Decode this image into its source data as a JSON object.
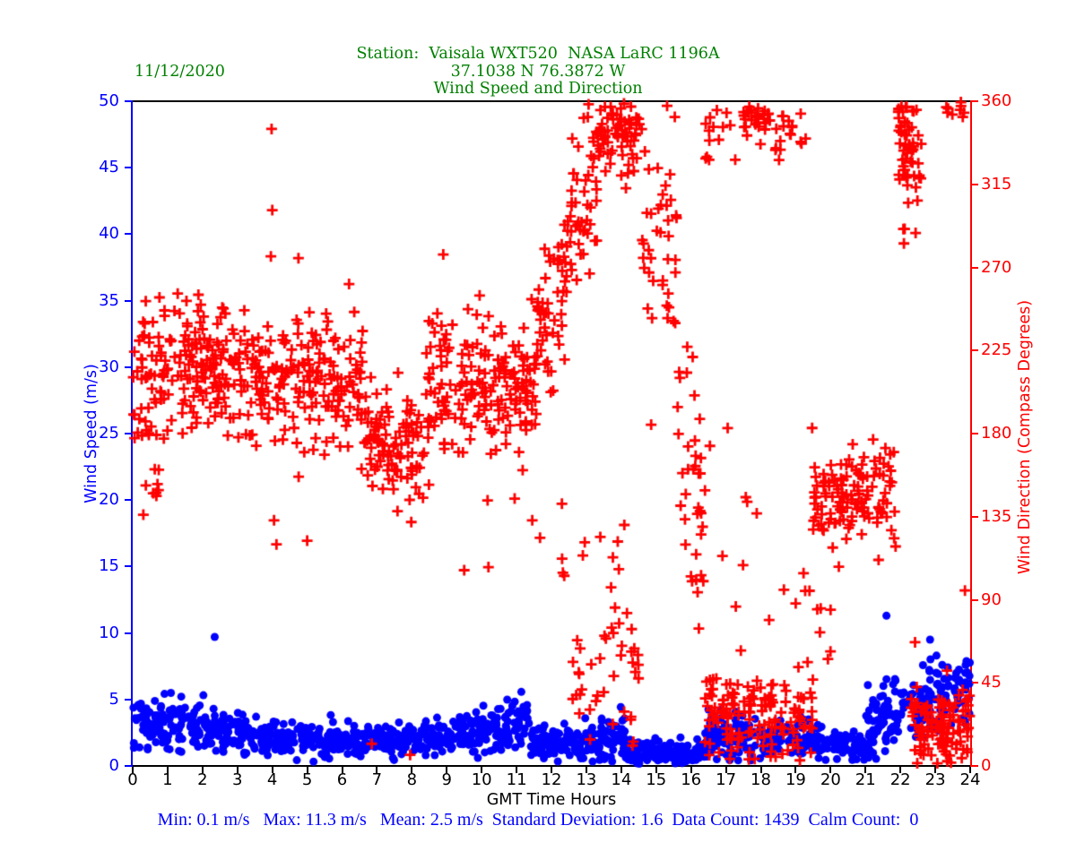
{
  "header": {
    "date": "11/12/2020",
    "station_line": "Station:  Vaisala WXT520  NASA LaRC 1196A",
    "location_line": "37.1038 N 76.3872 W",
    "plot_title_line": "Wind Speed and Direction",
    "title_color": "#008000"
  },
  "footer": {
    "stats_text": "Min: 0.1 m/s   Max: 11.3 m/s   Mean: 2.5 m/s  Standard Deviation: 1.6  Data Count: 1439  Calm Count:  0",
    "stats": {
      "min_mps": 0.1,
      "max_mps": 11.3,
      "mean_mps": 2.5,
      "standard_deviation": 1.6,
      "data_count": 1439,
      "calm_count": 0
    },
    "color": "#0000ff"
  },
  "chart_data": {
    "type": "scatter",
    "title": "Wind Speed and Direction",
    "subtitle": "Station: Vaisala WXT520 NASA LaRC 1196A, 37.1038 N 76.3872 W, 11/12/2020",
    "grid": false,
    "legend": "none",
    "x_axis": {
      "label": "GMT Time Hours",
      "min": 0,
      "max": 24,
      "color": "#000000",
      "ticks": [
        0,
        1,
        2,
        3,
        4,
        5,
        6,
        7,
        8,
        9,
        10,
        11,
        12,
        13,
        14,
        15,
        16,
        17,
        18,
        19,
        20,
        21,
        22,
        23,
        24
      ]
    },
    "y_axis_left": {
      "label": "Wind Speed (m/s)",
      "min": 0,
      "max": 50,
      "color": "#0000ff",
      "ticks": [
        0,
        5,
        10,
        15,
        20,
        25,
        30,
        35,
        40,
        45,
        50
      ]
    },
    "y_axis_right": {
      "label": "Wind Direction (Compass Degrees)",
      "min": 0,
      "max": 360,
      "color": "#ff0000",
      "ticks": [
        0,
        45,
        90,
        135,
        180,
        225,
        270,
        315,
        360
      ]
    },
    "segment_format": [
      "t_start_hr",
      "t_end_hr",
      "count",
      "mean_start",
      "mean_end",
      "std_dev",
      "clamp_min",
      "clamp_max"
    ],
    "series": [
      {
        "name": "wind_speed_mps",
        "axis": "left",
        "marker": "dot",
        "color": "#0000ff",
        "seed": 20201112,
        "segments": [
          [
            0.0,
            2.3,
            140,
            3.2,
            3.0,
            1.05,
            1.0,
            6.2
          ],
          [
            2.3,
            3.6,
            75,
            2.9,
            2.2,
            0.9,
            0.8,
            6.0
          ],
          [
            3.6,
            5.2,
            95,
            1.9,
            1.9,
            0.65,
            0.3,
            5.3
          ],
          [
            5.2,
            8.3,
            185,
            1.9,
            1.9,
            0.55,
            0.4,
            4.6
          ],
          [
            8.3,
            10.0,
            100,
            2.2,
            2.5,
            0.7,
            0.5,
            4.8
          ],
          [
            10.0,
            11.4,
            85,
            3.0,
            3.0,
            1.0,
            0.8,
            5.9
          ],
          [
            11.4,
            13.4,
            120,
            1.8,
            1.5,
            0.6,
            0.2,
            3.6
          ],
          [
            13.4,
            14.1,
            45,
            2.0,
            2.0,
            1.2,
            0.2,
            4.8
          ],
          [
            14.1,
            16.4,
            140,
            1.0,
            1.0,
            0.5,
            0.1,
            2.6
          ],
          [
            16.4,
            19.4,
            180,
            2.0,
            2.0,
            0.85,
            0.2,
            4.4
          ],
          [
            19.4,
            21.0,
            95,
            2.0,
            1.2,
            0.6,
            0.3,
            3.4
          ],
          [
            21.0,
            22.3,
            80,
            2.5,
            5.0,
            1.4,
            0.5,
            8.6
          ],
          [
            22.3,
            24.0,
            105,
            5.0,
            5.5,
            1.6,
            1.2,
            8.3
          ]
        ],
        "points": [
          [
            2.35,
            9.7
          ],
          [
            21.6,
            11.3
          ],
          [
            22.85,
            9.5
          ],
          [
            23.2,
            7.6
          ]
        ]
      },
      {
        "name": "wind_direction_deg",
        "axis": "right",
        "marker": "plus",
        "color": "#ff0000",
        "seed": 76387,
        "segments": [
          [
            0.0,
            1.0,
            62,
            212,
            215,
            20,
            152,
            262
          ],
          [
            0.25,
            0.75,
            7,
            150,
            150,
            9,
            132,
            168
          ],
          [
            1.0,
            3.3,
            145,
            216,
            214,
            17,
            168,
            266
          ],
          [
            3.3,
            4.6,
            72,
            213,
            209,
            19,
            158,
            258
          ],
          [
            4.6,
            6.6,
            118,
            209,
            207,
            17,
            156,
            254
          ],
          [
            6.6,
            8.4,
            105,
            178,
            163,
            17,
            132,
            228
          ],
          [
            8.4,
            11.6,
            195,
            204,
            211,
            19,
            150,
            266
          ],
          [
            11.6,
            12.5,
            52,
            228,
            262,
            24,
            172,
            330
          ],
          [
            12.5,
            13.3,
            48,
            288,
            338,
            28,
            205,
            359
          ],
          [
            13.3,
            14.6,
            72,
            344,
            344,
            13,
            295,
            359.5
          ],
          [
            14.6,
            15.6,
            42,
            300,
            300,
            42,
            172,
            359.5
          ],
          [
            15.6,
            16.4,
            38,
            205,
            120,
            38,
            62,
            330
          ],
          [
            12.6,
            13.4,
            16,
            42,
            42,
            18,
            6,
            88
          ],
          [
            13.4,
            14.5,
            30,
            92,
            28,
            24,
            5,
            140
          ],
          [
            9.0,
            13.4,
            8,
            125,
            125,
            18,
            95,
            160
          ],
          [
            16.4,
            19.5,
            148,
            26,
            26,
            13,
            2,
            58
          ],
          [
            16.4,
            17.3,
            14,
            345,
            345,
            8,
            326,
            359.5
          ],
          [
            17.4,
            18.3,
            30,
            352,
            352,
            6,
            332,
            359.8
          ],
          [
            18.3,
            19.4,
            18,
            340,
            340,
            12,
            300,
            359.5
          ],
          [
            16.5,
            19.5,
            12,
            110,
            110,
            45,
            55,
            200
          ],
          [
            19.5,
            21.9,
            128,
            146,
            146,
            13,
            102,
            178
          ],
          [
            19.2,
            20.0,
            8,
            72,
            72,
            18,
            42,
            108
          ],
          [
            21.9,
            22.6,
            52,
            342,
            334,
            16,
            272,
            359.8
          ],
          [
            22.0,
            22.45,
            6,
            292,
            292,
            22,
            242,
            330
          ],
          [
            22.3,
            24.0,
            118,
            18,
            22,
            11,
            1,
            56
          ],
          [
            23.3,
            23.95,
            9,
            354,
            354,
            5,
            342,
            359.8
          ]
        ],
        "points": [
          [
            3.98,
            345
          ],
          [
            3.96,
            276
          ],
          [
            4.0,
            301
          ],
          [
            4.05,
            133
          ],
          [
            4.12,
            120
          ],
          [
            4.75,
            275
          ],
          [
            5.0,
            122
          ],
          [
            6.2,
            261
          ],
          [
            6.85,
            12
          ],
          [
            7.95,
            6
          ],
          [
            8.9,
            277
          ],
          [
            9.5,
            106
          ],
          [
            11.45,
            133
          ],
          [
            12.2,
            281
          ],
          [
            12.3,
            142
          ],
          [
            12.9,
            114
          ],
          [
            13.4,
            124
          ],
          [
            17.05,
            183
          ],
          [
            19.0,
            88
          ],
          [
            22.42,
            67
          ],
          [
            23.85,
            95
          ]
        ]
      }
    ]
  }
}
